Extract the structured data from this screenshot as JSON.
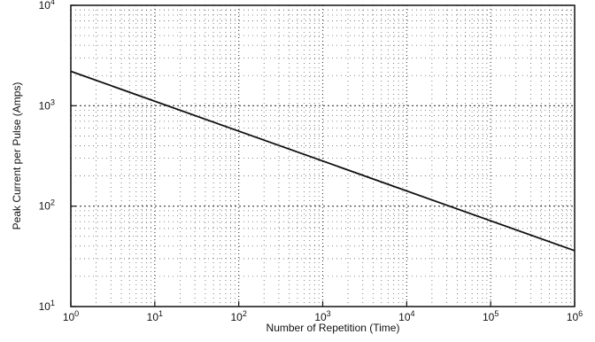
{
  "chart_data": {
    "type": "line",
    "title": "",
    "xlabel": "Number of Repetition (Time)",
    "ylabel": "Peak Current per Pulse (Amps)",
    "x_scale": "log",
    "y_scale": "log",
    "xlim": [
      1,
      1000000
    ],
    "ylim": [
      10,
      10000
    ],
    "grid": "dense dotted log grid",
    "legend": "none",
    "x_ticks": [
      {
        "value": 1,
        "base": "10",
        "exp": "0"
      },
      {
        "value": 10,
        "base": "10",
        "exp": "1"
      },
      {
        "value": 100,
        "base": "10",
        "exp": "2"
      },
      {
        "value": 1000,
        "base": "10",
        "exp": "3"
      },
      {
        "value": 10000,
        "base": "10",
        "exp": "4"
      },
      {
        "value": 100000,
        "base": "10",
        "exp": "5"
      },
      {
        "value": 1000000,
        "base": "10",
        "exp": "6"
      }
    ],
    "y_ticks": [
      {
        "value": 10,
        "base": "10",
        "exp": "1"
      },
      {
        "value": 100,
        "base": "10",
        "exp": "2"
      },
      {
        "value": 1000,
        "base": "10",
        "exp": "3"
      },
      {
        "value": 10000,
        "base": "10",
        "exp": "4"
      }
    ],
    "series": [
      {
        "x": [
          1,
          1000000
        ],
        "y": [
          2200,
          36
        ]
      }
    ],
    "colors": {
      "line": "#111111",
      "frame": "#111111",
      "grid": "#222222"
    }
  }
}
